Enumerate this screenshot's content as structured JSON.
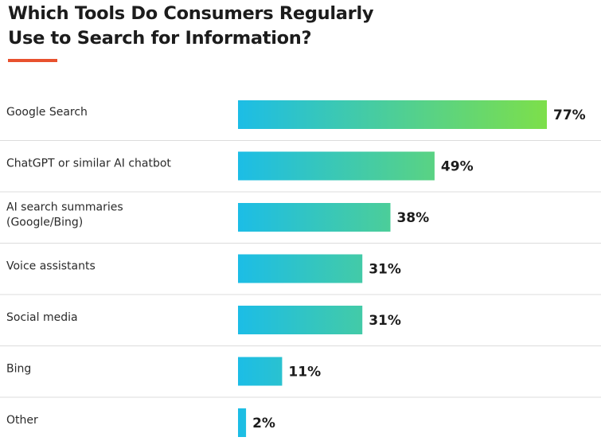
{
  "chart_data": {
    "type": "bar",
    "orientation": "horizontal",
    "title": "Which Tools Do Consumers Regularly Use to Search for Information?",
    "categories": [
      [
        "Google Search"
      ],
      [
        "ChatGPT or similar AI chatbot"
      ],
      [
        "AI search summaries",
        "(Google/Bing)"
      ],
      [
        "Voice assistants"
      ],
      [
        "Social media"
      ],
      [
        "Bing"
      ],
      [
        "Other"
      ]
    ],
    "values": [
      77,
      49,
      38,
      31,
      31,
      11,
      2
    ],
    "value_labels": [
      "77%",
      "49%",
      "38%",
      "31%",
      "31%",
      "11%",
      "2%"
    ],
    "unit": "%",
    "xlim": [
      0,
      100
    ],
    "grid": false,
    "legend": "none",
    "colors": {
      "bar_start": "#1cbde6",
      "bar_end": "#7ddf4a",
      "separator": "#dcdcdc",
      "title_underline": "#e8512e"
    }
  }
}
